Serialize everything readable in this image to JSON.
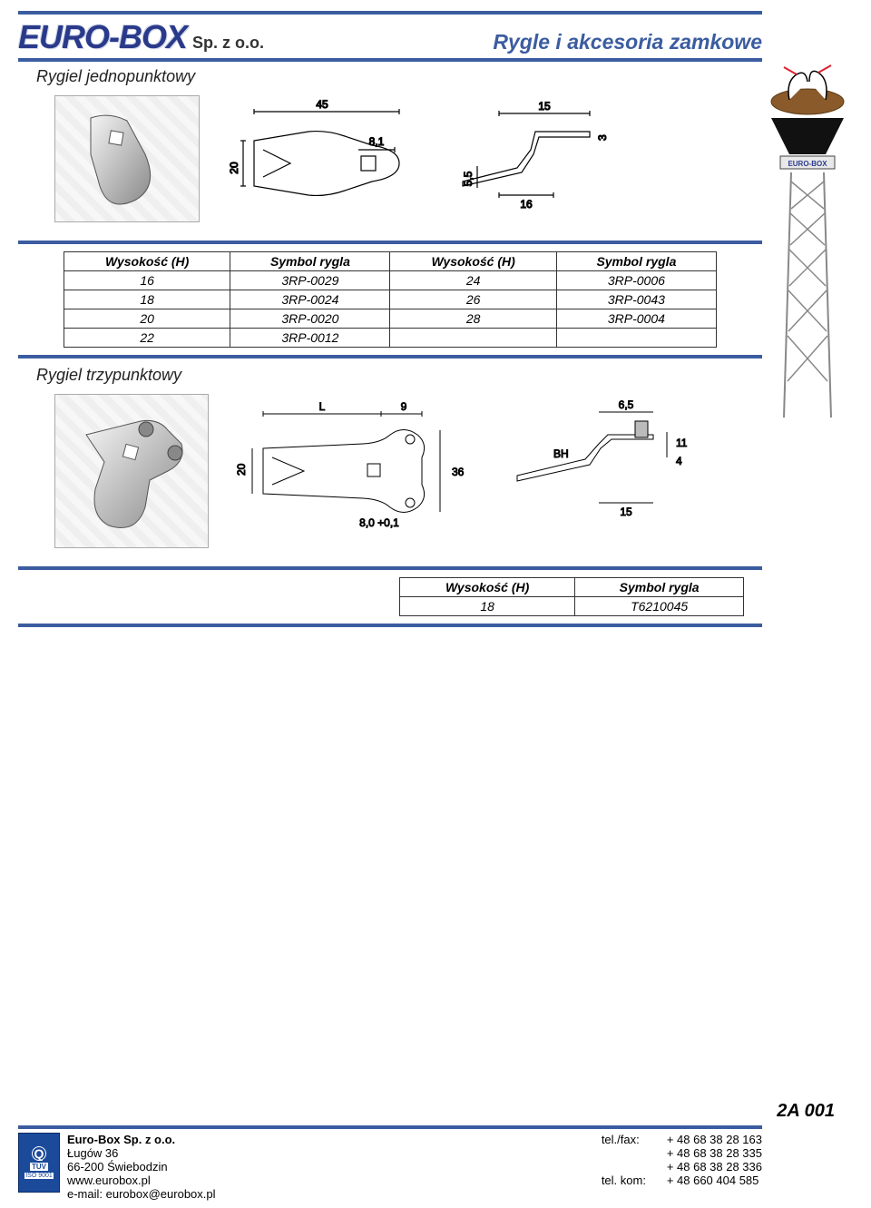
{
  "header": {
    "logo_main": "EURO-BOX",
    "logo_suffix": "Sp. z o.o.",
    "page_title": "Rygle i akcesoria zamkowe",
    "colors": {
      "rule": "#3b5ca0",
      "logo_fill": "#2a3a8a"
    }
  },
  "section1": {
    "title": "Rygiel jednopunktowy",
    "drawing_dims": {
      "top_width": "45",
      "side_width": "15",
      "hole": "8,1",
      "body_height": "20",
      "side_drop": "5,5",
      "shelf": "16",
      "thickness": "3"
    },
    "table": {
      "columns": [
        "Wysokość (H)",
        "Symbol rygla",
        "Wysokość (H)",
        "Symbol rygla"
      ],
      "rows": [
        [
          "16",
          "3RP-0029",
          "24",
          "3RP-0006"
        ],
        [
          "18",
          "3RP-0024",
          "26",
          "3RP-0043"
        ],
        [
          "20",
          "3RP-0020",
          "28",
          "3RP-0004"
        ],
        [
          "22",
          "3RP-0012",
          "",
          ""
        ]
      ]
    }
  },
  "section2": {
    "title": "Rygiel trzypunktowy",
    "drawing_dims": {
      "L": "L",
      "arm": "9",
      "body_h": "20",
      "hole": "8,0  +0,1",
      "overall_h": "36",
      "side_top": "6,5",
      "side_bh": "BH",
      "side_a": "11",
      "side_b": "4",
      "side_base": "15"
    },
    "table": {
      "columns": [
        "Wysokość (H)",
        "Symbol rygla"
      ],
      "rows": [
        [
          "18",
          "T6210045"
        ]
      ]
    }
  },
  "tower_label": "EURO-BOX",
  "footer": {
    "page_code": "2A 001",
    "cert_lines": [
      "TÜV",
      "ISO 9001"
    ],
    "company": "Euro-Box Sp. z o.o.",
    "addr1": "Ługów 36",
    "addr2": "66-200 Świebodzin",
    "web": "www.eurobox.pl",
    "email": "e-mail: eurobox@eurobox.pl",
    "tel_fax_lbl": "tel./fax:",
    "tel_fax": "+ 48 68 38 28 163",
    "tel2": "+ 48 68 38 28 335",
    "tel3": "+ 48 68 38 28 336",
    "kom_lbl": "tel. kom:",
    "kom": "+ 48  660 404 585"
  }
}
